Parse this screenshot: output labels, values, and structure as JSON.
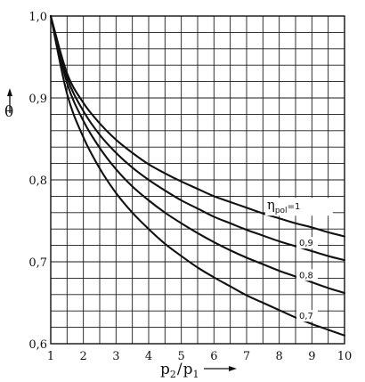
{
  "chart_data": {
    "type": "line",
    "title": "",
    "xlabel": {
      "main": "p",
      "sub1": "2",
      "sep": "/",
      "main2": "p",
      "sub2": "1"
    },
    "ylabel": "θ",
    "xlim": [
      1,
      10
    ],
    "ylim": [
      0.6,
      1.0
    ],
    "x_ticks": [
      "1",
      "2",
      "3",
      "4",
      "5",
      "6",
      "7",
      "8",
      "9",
      "10"
    ],
    "y_ticks": [
      "0,6",
      "0,7",
      "0,8",
      "0,9",
      "1,0"
    ],
    "grid": true,
    "series": [
      {
        "name": "1",
        "label_prefix": {
          "sym": "η",
          "sub": "pol",
          "eq": "="
        },
        "x": [
          1,
          1.5,
          2,
          2.5,
          3,
          3.5,
          4,
          4.5,
          5,
          5.5,
          6,
          6.5,
          7,
          7.5,
          8,
          8.5,
          9,
          9.5,
          10
        ],
        "y": [
          1.0,
          0.93,
          0.894,
          0.869,
          0.849,
          0.833,
          0.819,
          0.808,
          0.798,
          0.789,
          0.78,
          0.773,
          0.766,
          0.759,
          0.753,
          0.747,
          0.742,
          0.736,
          0.731
        ]
      },
      {
        "name": "0,9",
        "x": [
          1,
          1.5,
          2,
          2.5,
          3,
          3.5,
          4,
          4.5,
          5,
          5.5,
          6,
          6.5,
          7,
          7.5,
          8,
          8.5,
          9,
          9.5,
          10
        ],
        "y": [
          1.0,
          0.925,
          0.884,
          0.855,
          0.833,
          0.815,
          0.8,
          0.787,
          0.775,
          0.765,
          0.755,
          0.747,
          0.739,
          0.732,
          0.725,
          0.719,
          0.713,
          0.707,
          0.702
        ]
      },
      {
        "name": "0,8",
        "x": [
          1,
          1.5,
          2,
          2.5,
          3,
          3.5,
          4,
          4.5,
          5,
          5.5,
          6,
          6.5,
          7,
          7.5,
          8,
          8.5,
          9,
          9.5,
          10
        ],
        "y": [
          1.0,
          0.918,
          0.872,
          0.839,
          0.813,
          0.792,
          0.775,
          0.76,
          0.747,
          0.735,
          0.724,
          0.714,
          0.705,
          0.697,
          0.689,
          0.682,
          0.675,
          0.668,
          0.662
        ]
      },
      {
        "name": "0,7",
        "x": [
          1,
          1.5,
          2,
          2.5,
          3,
          3.5,
          4,
          4.5,
          5,
          5.5,
          6,
          6.5,
          7,
          7.5,
          8,
          8.5,
          9,
          9.5,
          10
        ],
        "y": [
          1.0,
          0.905,
          0.852,
          0.814,
          0.784,
          0.76,
          0.74,
          0.722,
          0.707,
          0.693,
          0.681,
          0.67,
          0.659,
          0.65,
          0.641,
          0.632,
          0.624,
          0.617,
          0.61
        ]
      }
    ]
  }
}
